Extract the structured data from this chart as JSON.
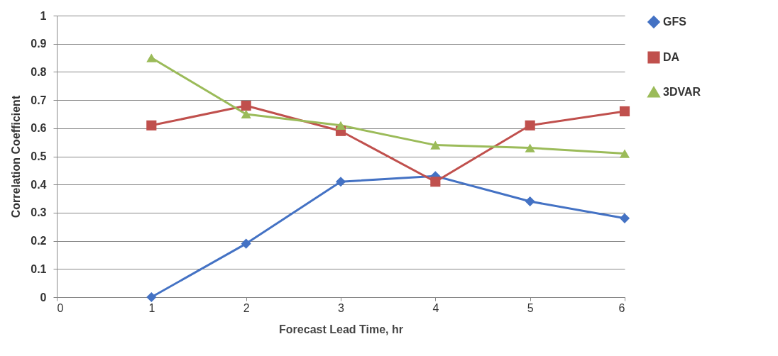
{
  "chart_data": {
    "type": "line",
    "xlabel": "Forecast Lead Time, hr",
    "ylabel": "Correlation Coefficient",
    "x": [
      1,
      2,
      3,
      4,
      5,
      6
    ],
    "series": [
      {
        "name": "GFS",
        "color": "#4472c4",
        "marker": "diamond",
        "values": [
          0,
          0.19,
          0.41,
          0.43,
          0.34,
          0.28
        ]
      },
      {
        "name": "DA",
        "color": "#c0504d",
        "marker": "square",
        "values": [
          0.61,
          0.68,
          0.59,
          0.41,
          0.61,
          0.66
        ]
      },
      {
        "name": "3DVAR",
        "color": "#9bbb59",
        "marker": "triangle",
        "values": [
          0.85,
          0.65,
          0.61,
          0.54,
          0.53,
          0.51
        ]
      }
    ],
    "xlim": [
      0,
      6
    ],
    "xticks": [
      0,
      1,
      2,
      3,
      4,
      5,
      6
    ],
    "ylim": [
      0,
      1
    ],
    "yticks": [
      0,
      0.1,
      0.2,
      0.3,
      0.4,
      0.5,
      0.6,
      0.7,
      0.8,
      0.9,
      1
    ],
    "grid": "y",
    "legend": "right",
    "line_style": "solid"
  }
}
